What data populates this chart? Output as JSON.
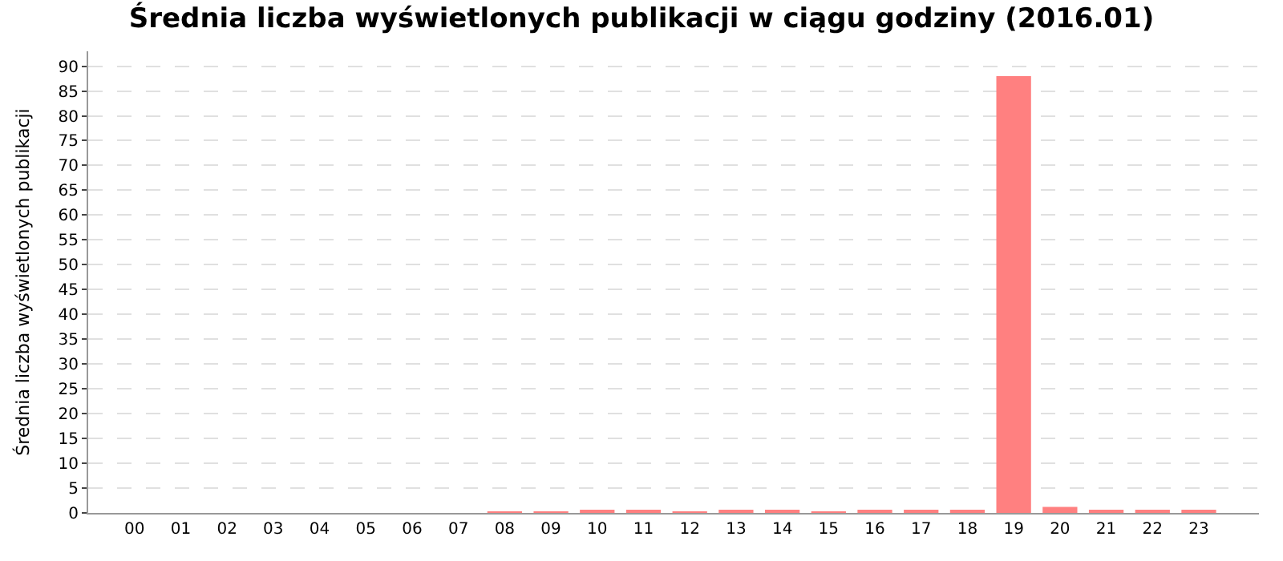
{
  "chart_data": {
    "type": "bar",
    "title": "Średnia liczba wyświetlonych publikacji w ciągu godziny (2016.01)",
    "ylabel": "Średnia liczba wyświetlonych publikacji",
    "categories": [
      "00",
      "01",
      "02",
      "03",
      "04",
      "05",
      "06",
      "07",
      "08",
      "09",
      "10",
      "11",
      "12",
      "13",
      "14",
      "15",
      "16",
      "17",
      "18",
      "19",
      "20",
      "21",
      "22",
      "23"
    ],
    "values": [
      0,
      0,
      0,
      0,
      0,
      0,
      0,
      0,
      0.2,
      0.2,
      0.6,
      0.6,
      0.3,
      0.4,
      0.4,
      0.1,
      0.4,
      0.4,
      0.4,
      88,
      1.2,
      0.5,
      0.5,
      0.5
    ],
    "color": "#ff8080",
    "ylim": [
      0,
      93
    ],
    "yticks": [
      0,
      5,
      10,
      15,
      20,
      25,
      30,
      35,
      40,
      45,
      50,
      55,
      60,
      65,
      70,
      75,
      80,
      85,
      90
    ],
    "grid": "y",
    "legend": false
  }
}
